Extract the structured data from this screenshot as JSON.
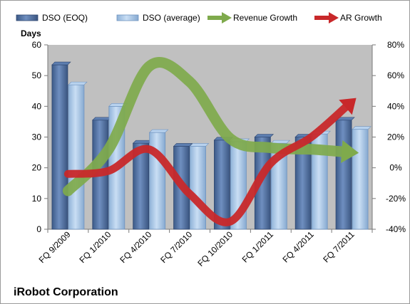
{
  "chart_data": {
    "type": "bar",
    "title": "iRobot Corporation",
    "y_left_label": "Days",
    "categories": [
      "FQ 9/2009",
      "FQ 1/2010",
      "FQ 4/2010",
      "FQ 7/2010",
      "FQ 10/2010",
      "FQ 1/2011",
      "FQ 4/2011",
      "FQ 7/2011"
    ],
    "y_left": {
      "min": 0,
      "max": 60,
      "ticks": [
        0,
        10,
        20,
        30,
        40,
        50,
        60
      ]
    },
    "y_right": {
      "min": -40,
      "max": 80,
      "ticks": [
        "-40%",
        "-20%",
        "0%",
        "20%",
        "40%",
        "60%",
        "80%"
      ]
    },
    "series": [
      {
        "name": "DSO (EOQ)",
        "kind": "bar",
        "axis": "left",
        "color": "#4f6f9f",
        "values": [
          53.5,
          35.5,
          28,
          27,
          29,
          30,
          30,
          35.5
        ]
      },
      {
        "name": "DSO (average)",
        "kind": "bar",
        "axis": "left",
        "color": "#a6c6e8",
        "values": [
          47,
          40,
          31.5,
          27,
          28.5,
          28,
          31,
          32.5
        ]
      },
      {
        "name": "Revenue Growth",
        "kind": "arrow-line",
        "axis": "right",
        "color": "#7faa4c",
        "values": [
          -15,
          12,
          66,
          56,
          19,
          13,
          12,
          10
        ]
      },
      {
        "name": "AR Growth",
        "kind": "arrow-line",
        "axis": "right",
        "color": "#c8282a",
        "values": [
          -4,
          -2,
          12,
          -17,
          -35,
          3,
          20,
          43
        ]
      }
    ],
    "plot_background": "#c0c0c0",
    "legend_position": "top",
    "grid": false
  }
}
